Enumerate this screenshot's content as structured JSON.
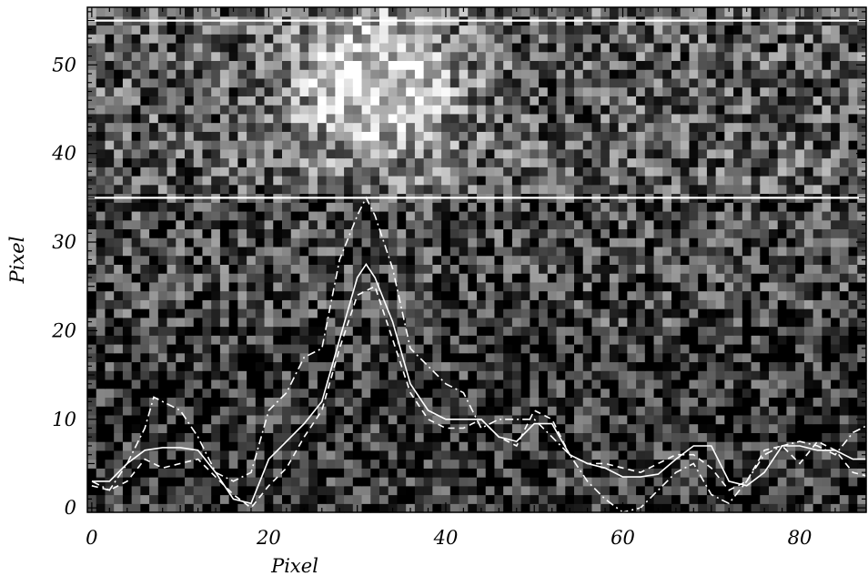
{
  "chart_data": {
    "type": "heatmap",
    "title": "",
    "xlabel": "Pixel",
    "ylabel": "Pixel",
    "xlim": [
      -0.5,
      87.5
    ],
    "ylim": [
      -0.5,
      56.5
    ],
    "x_ticks": [
      0,
      20,
      40,
      60,
      80
    ],
    "y_ticks": [
      0,
      10,
      20,
      30,
      40,
      50
    ],
    "grid": false,
    "colormap": "grayscale",
    "image": {
      "columns": 88,
      "rows": 57,
      "description_values": "noisy grayscale intensity, brightest near x≈30–35, y≈38–56"
    },
    "horizontal_lines": [
      {
        "y": 55,
        "color": "#ffffff"
      },
      {
        "y": 35,
        "color": "#ffffff"
      }
    ],
    "series": [
      {
        "style": "solid",
        "color": "#ffffff",
        "x": [
          0,
          2,
          4,
          6,
          8,
          10,
          12,
          14,
          16,
          18,
          20,
          22,
          24,
          26,
          28,
          30,
          31,
          32,
          34,
          36,
          38,
          40,
          42,
          44,
          46,
          48,
          50,
          52,
          54,
          56,
          58,
          60,
          62,
          64,
          66,
          68,
          70,
          72,
          74,
          76,
          78,
          80,
          82,
          84,
          86,
          88
        ],
        "y": [
          3,
          3,
          5,
          6.5,
          6.8,
          6.8,
          6.5,
          4,
          1,
          0.5,
          5.5,
          7.5,
          9.5,
          12,
          19,
          26,
          27.5,
          26,
          21,
          14,
          11,
          10,
          10,
          10,
          8,
          7.5,
          9.5,
          9.5,
          6,
          5,
          4.5,
          3.5,
          3.5,
          3.8,
          5.5,
          7,
          7,
          3,
          2.5,
          4,
          7,
          7,
          6.5,
          6.5,
          5.5,
          5.5
        ]
      },
      {
        "style": "dashed",
        "color": "#ffffff",
        "x": [
          0,
          2,
          4,
          6,
          8,
          10,
          12,
          14,
          16,
          18,
          20,
          22,
          24,
          26,
          28,
          30,
          32,
          34,
          36,
          38,
          40,
          42,
          44,
          46,
          48,
          50,
          52,
          54,
          56,
          58,
          60,
          62,
          64,
          66,
          68,
          70,
          72,
          74,
          76,
          78,
          80,
          82,
          84,
          86,
          88
        ],
        "y": [
          2.5,
          2,
          3,
          5.5,
          4.5,
          5,
          5.5,
          3.5,
          1.5,
          0,
          2.5,
          4.5,
          8,
          11,
          18,
          24,
          25,
          19,
          13,
          10,
          9,
          9,
          10,
          8,
          7,
          11,
          10,
          6,
          5,
          5,
          4.5,
          4,
          5,
          6,
          6,
          4.5,
          2,
          3,
          6.5,
          7,
          5,
          7.5,
          6.5,
          4,
          3.5
        ]
      },
      {
        "style": "dashdot",
        "color": "#ffffff",
        "x": [
          0,
          2,
          4,
          6,
          7,
          8,
          10,
          12,
          14,
          16,
          18,
          20,
          22,
          24,
          26,
          28,
          30,
          31,
          32,
          34,
          36,
          38,
          40,
          42,
          44,
          46,
          48,
          50,
          52,
          54,
          56,
          58,
          60,
          62,
          64,
          66,
          68,
          70,
          72,
          74,
          76,
          78,
          80,
          82,
          84,
          86,
          88
        ],
        "y": [
          3,
          2,
          5,
          9,
          12.5,
          12,
          11,
          8,
          4,
          3,
          4,
          11,
          13,
          17,
          18,
          28,
          33,
          35,
          33,
          27,
          18,
          16,
          14,
          13,
          9,
          10,
          10,
          10,
          8,
          6,
          3,
          1,
          -0.5,
          0,
          2,
          4,
          5,
          1.5,
          0.5,
          3,
          6,
          7,
          7.5,
          7,
          6,
          8.5,
          9.5
        ]
      }
    ]
  }
}
